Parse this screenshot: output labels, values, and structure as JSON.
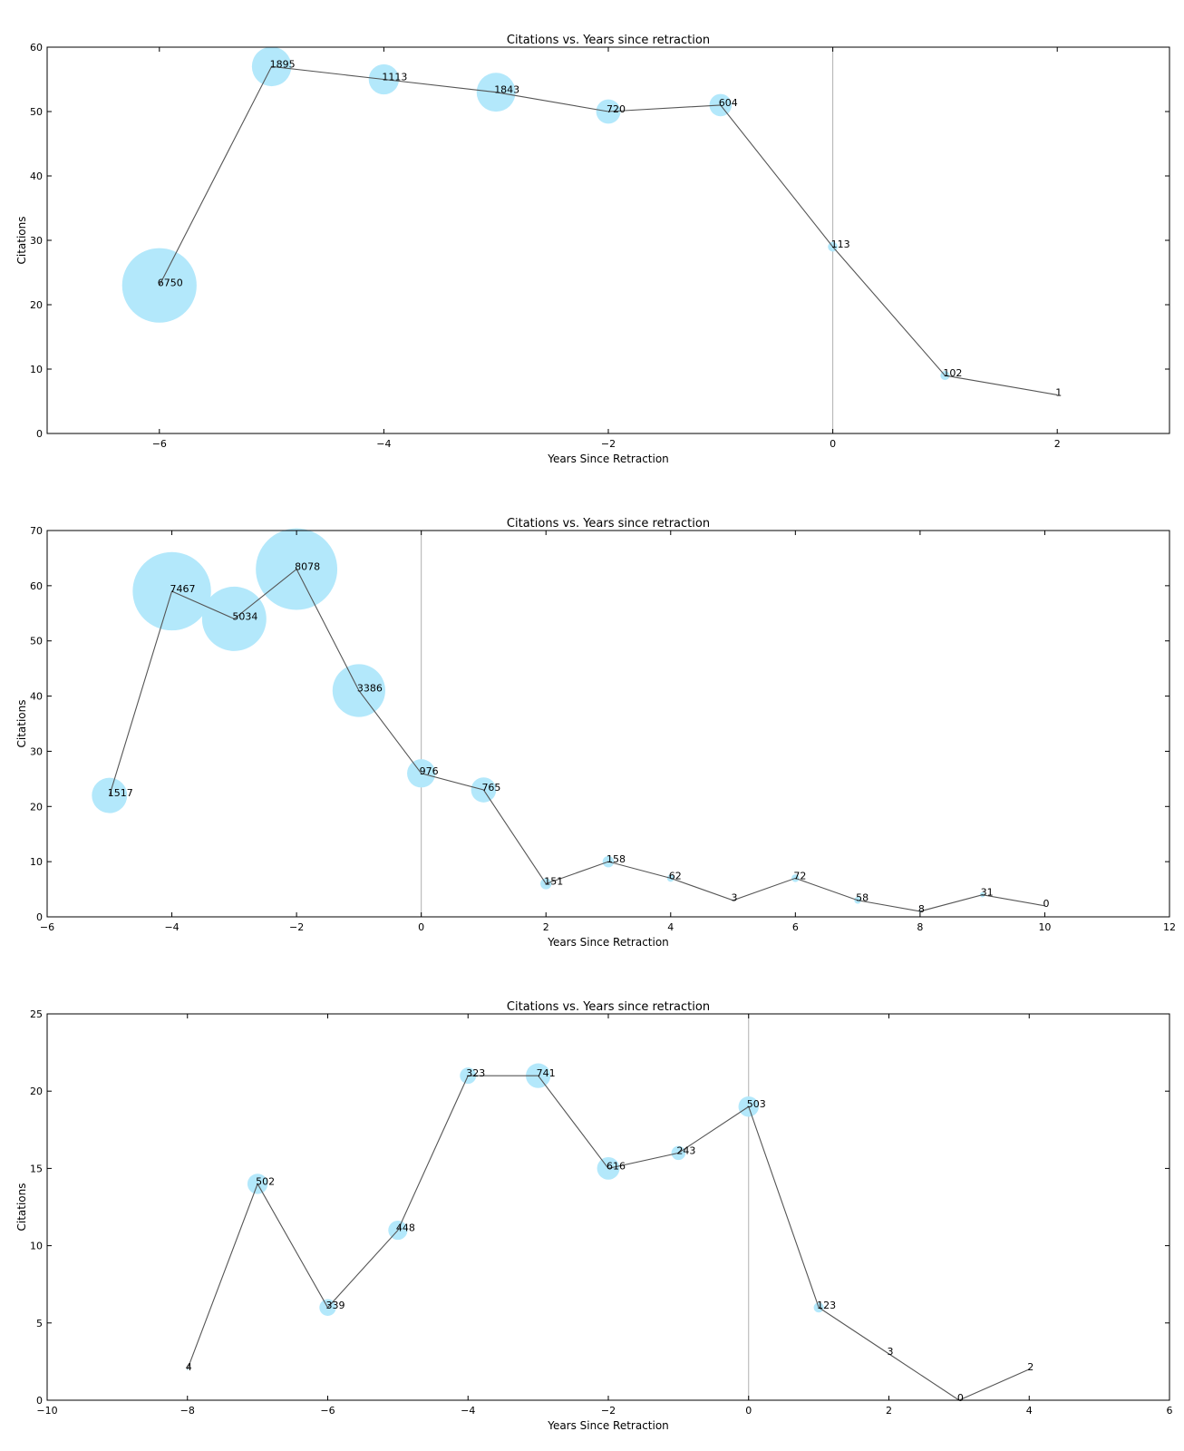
{
  "colors": {
    "bubble": "#b3e8fb",
    "line": "#555555",
    "vline": "#b0b0b0"
  },
  "chart_data": [
    {
      "type": "scatter",
      "title": "Citations vs. Years since retraction",
      "xlabel": "Years Since Retraction",
      "ylabel": "Citations",
      "xlim": [
        -7,
        3
      ],
      "ylim": [
        0,
        60
      ],
      "xticks": [
        -6,
        -4,
        -2,
        0,
        2
      ],
      "yticks": [
        0,
        10,
        20,
        30,
        40,
        50,
        60
      ],
      "xtick_labels": [
        "−6",
        "−4",
        "−2",
        "0",
        "2"
      ],
      "ytick_labels": [
        "0",
        "10",
        "20",
        "30",
        "40",
        "50",
        "60"
      ],
      "vline_x": 0,
      "x": [
        -6,
        -5,
        -4,
        -3,
        -2,
        -1,
        0,
        1,
        2
      ],
      "y": [
        23,
        57,
        55,
        53,
        50,
        51,
        29,
        9,
        6
      ],
      "size_values": [
        6750,
        1895,
        1113,
        1843,
        720,
        604,
        113,
        102,
        1
      ],
      "labels": [
        "6750",
        "1895",
        "1113",
        "1843",
        "720",
        "604",
        "113",
        "102",
        "1"
      ]
    },
    {
      "type": "scatter",
      "title": "Citations vs. Years since retraction",
      "xlabel": "Years Since Retraction",
      "ylabel": "Citations",
      "xlim": [
        -6,
        12
      ],
      "ylim": [
        0,
        70
      ],
      "xticks": [
        -6,
        -4,
        -2,
        0,
        2,
        4,
        6,
        8,
        10,
        12
      ],
      "yticks": [
        0,
        10,
        20,
        30,
        40,
        50,
        60,
        70
      ],
      "xtick_labels": [
        "−6",
        "−4",
        "−2",
        "0",
        "2",
        "4",
        "6",
        "8",
        "10",
        "12"
      ],
      "ytick_labels": [
        "0",
        "10",
        "20",
        "30",
        "40",
        "50",
        "60",
        "70"
      ],
      "vline_x": 0,
      "x": [
        -5,
        -4,
        -3,
        -2,
        -1,
        0,
        1,
        2,
        3,
        4,
        5,
        6,
        7,
        8,
        9,
        10
      ],
      "y": [
        22,
        59,
        54,
        63,
        41,
        26,
        23,
        6,
        10,
        7,
        3,
        7,
        3,
        1,
        4,
        2
      ],
      "size_values": [
        1517,
        7467,
        5034,
        8078,
        3386,
        976,
        765,
        151,
        158,
        62,
        3,
        72,
        58,
        8,
        31,
        0
      ],
      "labels": [
        "1517",
        "7467",
        "5034",
        "8078",
        "3386",
        "976",
        "765",
        "151",
        "158",
        "62",
        "3",
        "72",
        "58",
        "8",
        "31",
        "0"
      ]
    },
    {
      "type": "scatter",
      "title": "Citations vs. Years since retraction",
      "xlabel": "Years Since Retraction",
      "ylabel": "Citations",
      "xlim": [
        -10,
        6
      ],
      "ylim": [
        0,
        25
      ],
      "xticks": [
        -10,
        -8,
        -6,
        -4,
        -2,
        0,
        2,
        4,
        6
      ],
      "yticks": [
        0,
        5,
        10,
        15,
        20,
        25
      ],
      "xtick_labels": [
        "−10",
        "−8",
        "−6",
        "−4",
        "−2",
        "0",
        "2",
        "4",
        "6"
      ],
      "ytick_labels": [
        "0",
        "5",
        "10",
        "15",
        "20",
        "25"
      ],
      "vline_x": 0,
      "x": [
        -8,
        -7,
        -6,
        -5,
        -4,
        -3,
        -2,
        -1,
        0,
        1,
        2,
        3,
        4
      ],
      "y": [
        2,
        14,
        6,
        11,
        21,
        21,
        15,
        16,
        19,
        6,
        3,
        0,
        2
      ],
      "size_values": [
        4,
        502,
        339,
        448,
        323,
        741,
        616,
        243,
        503,
        123,
        3,
        0,
        2
      ],
      "labels": [
        "4",
        "502",
        "339",
        "448",
        "323",
        "741",
        "616",
        "243",
        "503",
        "123",
        "3",
        "0",
        "2"
      ]
    }
  ]
}
